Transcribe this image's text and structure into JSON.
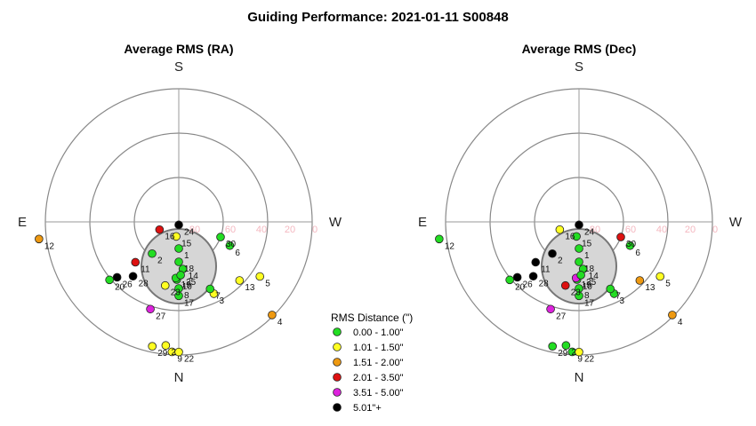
{
  "title": "Guiding Performance: 2021-01-11 S00848",
  "legend": {
    "title": "RMS Distance (\")",
    "entries": [
      {
        "label": "0.00 - 1.00\"",
        "color": "#22dd22"
      },
      {
        "label": "1.01 - 1.50\"",
        "color": "#ffff22"
      },
      {
        "label": "1.51 - 2.00\"",
        "color": "#ee9911"
      },
      {
        "label": "2.01 - 3.50\"",
        "color": "#dd1111"
      },
      {
        "label": "3.51 - 5.00\"",
        "color": "#dd22dd"
      },
      {
        "label": "5.01\"+",
        "color": "#000000"
      }
    ]
  },
  "chart_data": [
    {
      "type": "scatter",
      "projection": "polar",
      "title": "Average RMS (RA)",
      "directions": [
        "S",
        "E",
        "W",
        "N"
      ],
      "radial_ticks": [
        "80",
        "60",
        "40",
        "20",
        "0"
      ],
      "altitude_range": [
        0,
        90
      ],
      "points": [
        {
          "label": "1",
          "az": 180,
          "alt": 72,
          "cls": 0
        },
        {
          "label": "2",
          "az": 140,
          "alt": 62,
          "cls": 0
        },
        {
          "label": "3",
          "az": 206,
          "alt": 36,
          "cls": 1
        },
        {
          "label": "4",
          "az": 225,
          "alt": 1,
          "cls": 2
        },
        {
          "label": "5",
          "az": 236,
          "alt": 24,
          "cls": 1
        },
        {
          "label": "6",
          "az": 245,
          "alt": 52,
          "cls": 0
        },
        {
          "label": "7",
          "az": 205,
          "alt": 40,
          "cls": 0
        },
        {
          "label": "8",
          "az": 180,
          "alt": 45,
          "cls": 0
        },
        {
          "label": "9",
          "az": 177,
          "alt": 2,
          "cls": 1
        },
        {
          "label": "10",
          "az": 178,
          "alt": 51,
          "cls": 0
        },
        {
          "label": "11",
          "az": 133,
          "alt": 50,
          "cls": 3
        },
        {
          "label": "12",
          "az": 97,
          "alt": -5,
          "cls": 2
        },
        {
          "label": "13",
          "az": 226,
          "alt": 33,
          "cls": 1
        },
        {
          "label": "14",
          "az": 185,
          "alt": 58,
          "cls": 0
        },
        {
          "label": "15",
          "az": 170,
          "alt": 80,
          "cls": 1
        },
        {
          "label": "16",
          "az": 112,
          "alt": 76,
          "cls": 3
        },
        {
          "label": "17",
          "az": 180,
          "alt": 40,
          "cls": 0
        },
        {
          "label": "18",
          "az": 180,
          "alt": 63,
          "cls": 0
        },
        {
          "label": "19",
          "az": 177,
          "alt": 52,
          "cls": 0
        },
        {
          "label": "20",
          "az": 130,
          "alt": 29,
          "cls": 0
        },
        {
          "label": "21",
          "az": 174,
          "alt": 6,
          "cls": 1
        },
        {
          "label": "22",
          "az": 180,
          "alt": 2,
          "cls": 1
        },
        {
          "label": "23",
          "az": 168,
          "alt": 46,
          "cls": 1
        },
        {
          "label": "24",
          "az": 180,
          "alt": 88,
          "cls": 5
        },
        {
          "label": "25",
          "az": 182,
          "alt": 54,
          "cls": 0
        },
        {
          "label": "26",
          "az": 132,
          "alt": 34,
          "cls": 5
        },
        {
          "label": "27",
          "az": 162,
          "alt": 28,
          "cls": 4
        },
        {
          "label": "28",
          "az": 140,
          "alt": 42,
          "cls": 5
        },
        {
          "label": "29",
          "az": 168,
          "alt": 4,
          "cls": 1
        },
        {
          "label": "30",
          "az": 250,
          "alt": 60,
          "cls": 0
        }
      ]
    },
    {
      "type": "scatter",
      "projection": "polar",
      "title": "Average RMS (Dec)",
      "directions": [
        "S",
        "E",
        "W",
        "N"
      ],
      "radial_ticks": [
        "80",
        "60",
        "40",
        "20",
        "0"
      ],
      "altitude_range": [
        0,
        90
      ],
      "points": [
        {
          "label": "1",
          "az": 180,
          "alt": 72,
          "cls": 0
        },
        {
          "label": "2",
          "az": 140,
          "alt": 62,
          "cls": 5
        },
        {
          "label": "3",
          "az": 206,
          "alt": 36,
          "cls": 0
        },
        {
          "label": "4",
          "az": 225,
          "alt": 1,
          "cls": 2
        },
        {
          "label": "5",
          "az": 236,
          "alt": 24,
          "cls": 1
        },
        {
          "label": "6",
          "az": 245,
          "alt": 52,
          "cls": 0
        },
        {
          "label": "7",
          "az": 205,
          "alt": 40,
          "cls": 0
        },
        {
          "label": "8",
          "az": 180,
          "alt": 45,
          "cls": 0
        },
        {
          "label": "9",
          "az": 177,
          "alt": 2,
          "cls": 0
        },
        {
          "label": "10",
          "az": 178,
          "alt": 51,
          "cls": 0
        },
        {
          "label": "11",
          "az": 133,
          "alt": 50,
          "cls": 5
        },
        {
          "label": "12",
          "az": 97,
          "alt": -5,
          "cls": 0
        },
        {
          "label": "13",
          "az": 226,
          "alt": 33,
          "cls": 2
        },
        {
          "label": "14",
          "az": 185,
          "alt": 58,
          "cls": 0
        },
        {
          "label": "15",
          "az": 170,
          "alt": 80,
          "cls": 0
        },
        {
          "label": "16",
          "az": 112,
          "alt": 76,
          "cls": 1
        },
        {
          "label": "17",
          "az": 180,
          "alt": 40,
          "cls": 0
        },
        {
          "label": "18",
          "az": 180,
          "alt": 63,
          "cls": 0
        },
        {
          "label": "19",
          "az": 177,
          "alt": 52,
          "cls": 4
        },
        {
          "label": "20",
          "az": 130,
          "alt": 29,
          "cls": 0
        },
        {
          "label": "21",
          "az": 174,
          "alt": 6,
          "cls": 0
        },
        {
          "label": "22",
          "az": 180,
          "alt": 2,
          "cls": 1
        },
        {
          "label": "23",
          "az": 168,
          "alt": 46,
          "cls": 3
        },
        {
          "label": "24",
          "az": 180,
          "alt": 88,
          "cls": 5
        },
        {
          "label": "25",
          "az": 182,
          "alt": 54,
          "cls": 0
        },
        {
          "label": "26",
          "az": 132,
          "alt": 34,
          "cls": 5
        },
        {
          "label": "27",
          "az": 162,
          "alt": 28,
          "cls": 4
        },
        {
          "label": "28",
          "az": 140,
          "alt": 42,
          "cls": 5
        },
        {
          "label": "29",
          "az": 168,
          "alt": 4,
          "cls": 0
        },
        {
          "label": "30",
          "az": 250,
          "alt": 60,
          "cls": 3
        }
      ]
    }
  ]
}
